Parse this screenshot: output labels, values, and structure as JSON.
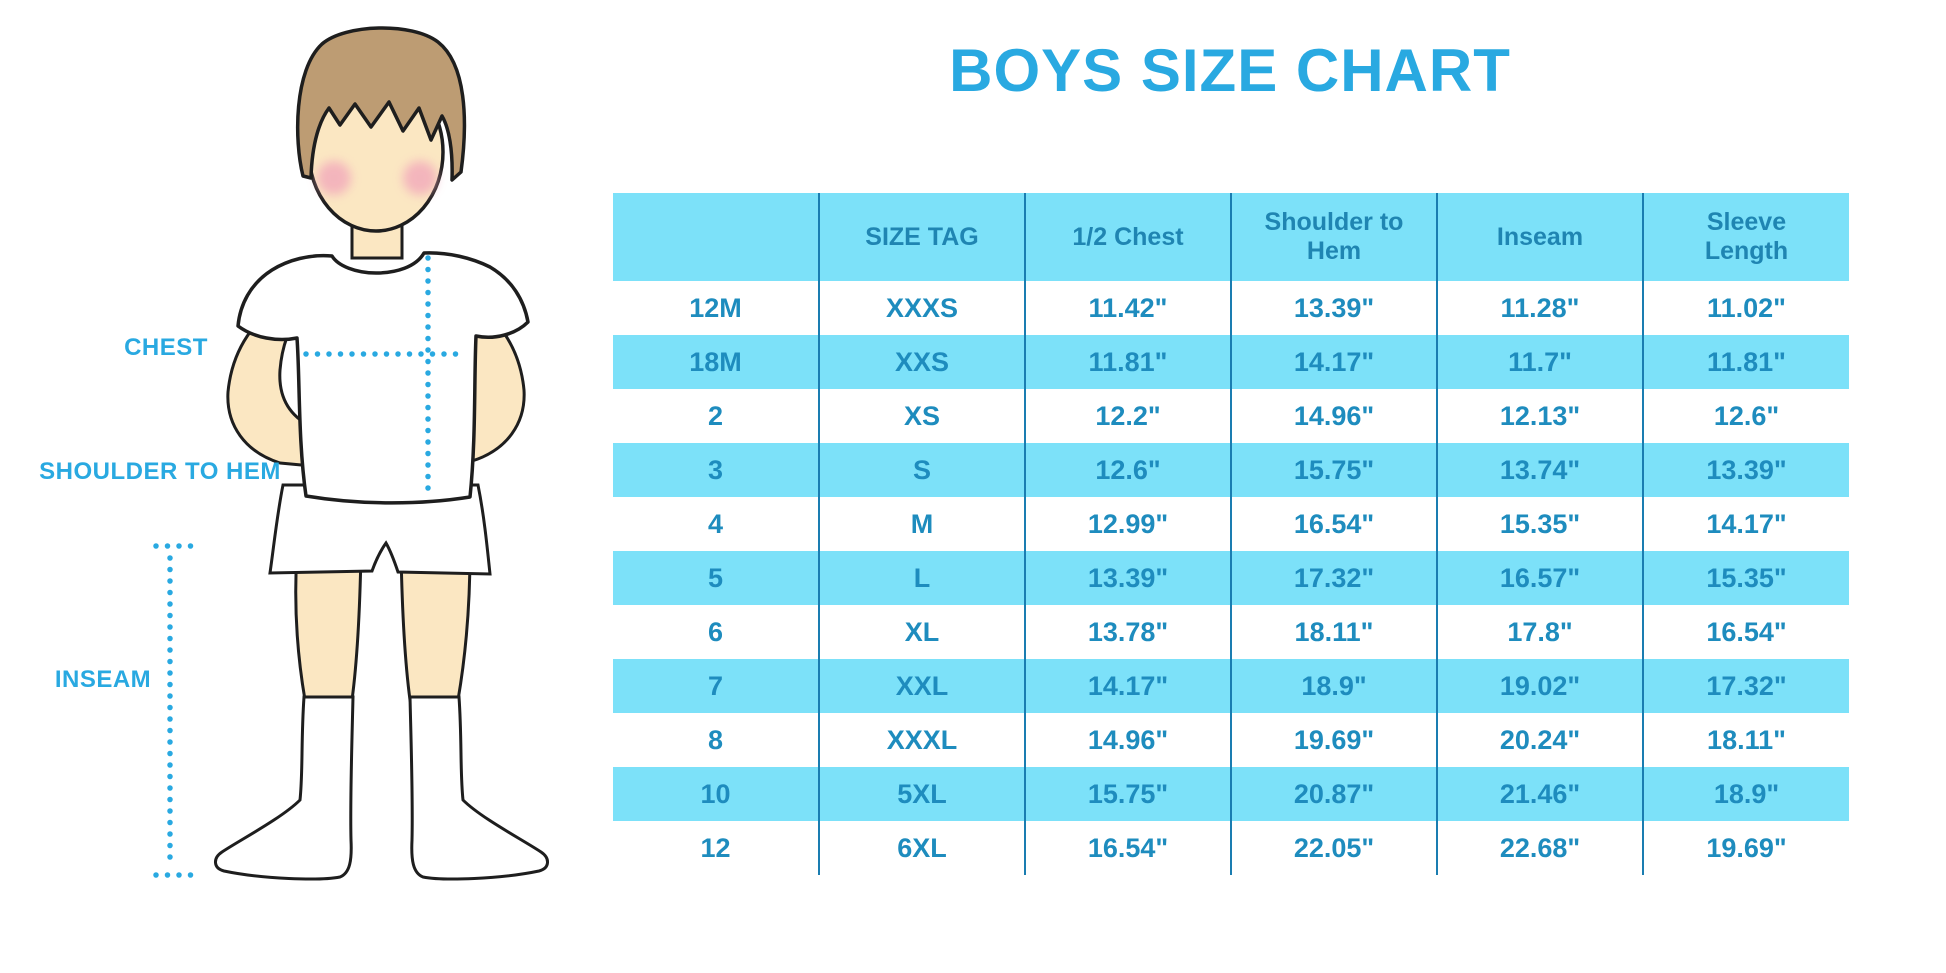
{
  "title": "BOYS SIZE CHART",
  "illustration": {
    "chest_label": "CHEST",
    "shoulder_to_hem_label": "SHOULDER TO HEM",
    "inseam_label": "INSEAM"
  },
  "colors": {
    "accent_cyan": "#29A9E1",
    "table_fill_cyan": "#7CE1F9",
    "table_text_blue": "#1E8CBE",
    "header_text_blue": "#1F85B2",
    "grid_line_blue": "#1A7DB1",
    "skin": "#FBE7C2",
    "hair_brown": "#BD9C73",
    "cheek_pink": "#F2A9BB",
    "outline_black": "#1E1E1E"
  },
  "chart_data": {
    "type": "table",
    "title": "BOYS SIZE CHART",
    "units": "inches",
    "columns": [
      "",
      "SIZE TAG",
      "1/2 Chest",
      "Shoulder to Hem",
      "Inseam",
      "Sleeve Length"
    ],
    "rows": [
      [
        "12M",
        "XXXS",
        "11.42\"",
        "13.39\"",
        "11.28\"",
        "11.02\""
      ],
      [
        "18M",
        "XXS",
        "11.81\"",
        "14.17\"",
        "11.7\"",
        "11.81\""
      ],
      [
        "2",
        "XS",
        "12.2\"",
        "14.96\"",
        "12.13\"",
        "12.6\""
      ],
      [
        "3",
        "S",
        "12.6\"",
        "15.75\"",
        "13.74\"",
        "13.39\""
      ],
      [
        "4",
        "M",
        "12.99\"",
        "16.54\"",
        "15.35\"",
        "14.17\""
      ],
      [
        "5",
        "L",
        "13.39\"",
        "17.32\"",
        "16.57\"",
        "15.35\""
      ],
      [
        "6",
        "XL",
        "13.78\"",
        "18.11\"",
        "17.8\"",
        "16.54\""
      ],
      [
        "7",
        "XXL",
        "14.17\"",
        "18.9\"",
        "19.02\"",
        "17.32\""
      ],
      [
        "8",
        "XXXL",
        "14.96\"",
        "19.69\"",
        "20.24\"",
        "18.11\""
      ],
      [
        "10",
        "5XL",
        "15.75\"",
        "20.87\"",
        "21.46\"",
        "18.9\""
      ],
      [
        "12",
        "6XL",
        "16.54\"",
        "22.05\"",
        "22.68\"",
        "19.69\""
      ]
    ],
    "measurement_labels": [
      "CHEST",
      "SHOULDER TO HEM",
      "INSEAM"
    ],
    "layout_hints": {
      "row_striping": "alternating white and cyan starting with white",
      "grid": "vertical column separators only"
    }
  }
}
